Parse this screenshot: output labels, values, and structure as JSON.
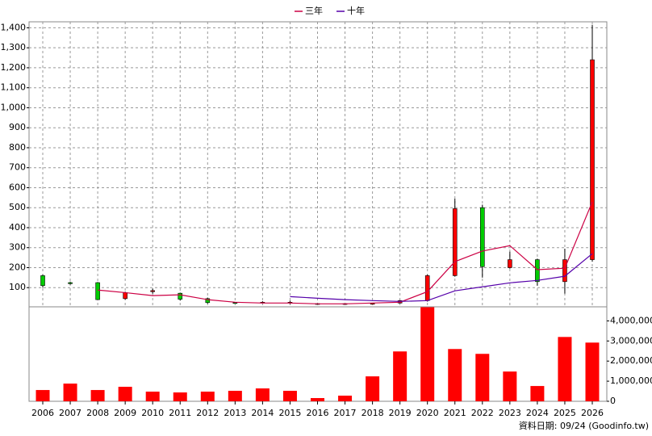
{
  "chart_data": [
    {
      "type": "candlestick",
      "open": [
        160,
        125,
        125,
        45,
        80,
        72,
        45,
        25,
        25,
        25,
        20,
        19,
        20,
        23,
        35,
        160,
        500,
        200,
        240,
        130,
        240
      ],
      "high": [
        165,
        130,
        128,
        80,
        95,
        75,
        50,
        27,
        32,
        35,
        22,
        21,
        22,
        38,
        165,
        545,
        515,
        280,
        245,
        295,
        1415
      ],
      "low": [
        100,
        115,
        38,
        40,
        70,
        35,
        20,
        20,
        22,
        18,
        17,
        17,
        18,
        20,
        30,
        155,
        150,
        195,
        110,
        70,
        230
      ],
      "close": [
        110,
        120,
        40,
        75,
        85,
        42,
        25,
        23,
        27,
        27,
        19,
        20,
        21,
        35,
        160,
        495,
        205,
        240,
        130,
        240,
        1240
      ],
      "up_color": "#ff0000",
      "down_color": "#00cc00",
      "series": [
        {
          "name": "三年",
          "color": "#cc0044",
          "values": [
            null,
            null,
            88,
            75,
            60,
            64,
            40,
            27,
            23,
            23,
            19,
            19,
            23,
            27,
            80,
            230,
            283,
            310,
            190,
            197,
            529
          ]
        },
        {
          "name": "十年",
          "color": "#5500aa",
          "values": [
            null,
            null,
            null,
            null,
            null,
            null,
            null,
            null,
            null,
            55,
            47,
            40,
            35,
            31,
            35,
            84,
            104,
            124,
            136,
            157,
            270
          ]
        }
      ],
      "ylim": [
        0,
        1430
      ],
      "yticks": [
        100,
        200,
        300,
        400,
        500,
        600,
        700,
        800,
        900,
        {
          "value": 1000,
          "label": "1,000"
        },
        {
          "value": 1100,
          "label": "1,100"
        },
        {
          "value": 1200,
          "label": "1,200"
        },
        {
          "value": 1300,
          "label": "1,300"
        },
        {
          "value": 1400,
          "label": "1,400"
        }
      ],
      "grid": true
    },
    {
      "type": "bar",
      "categories": [
        "2006",
        "2007",
        "2008",
        "2009",
        "2010",
        "2011",
        "2012",
        "2013",
        "2014",
        "2015",
        "2016",
        "2017",
        "2018",
        "2019",
        "2020",
        "2021",
        "2022",
        "2023",
        "2024",
        "2025",
        "2026"
      ],
      "values": [
        560000,
        880000,
        560000,
        720000,
        480000,
        440000,
        480000,
        520000,
        640000,
        520000,
        160000,
        280000,
        1240000,
        2480000,
        4680000,
        2600000,
        2360000,
        1480000,
        760000,
        3200000,
        2920000
      ],
      "color": "#ff0000",
      "ylim": [
        0,
        4700000
      ],
      "yticks": [
        0,
        {
          "value": 1000000,
          "label": "1,000,000"
        },
        {
          "value": 2000000,
          "label": "2,000,000"
        },
        {
          "value": 3000000,
          "label": "3,000,000"
        },
        {
          "value": 4000000,
          "label": "4,000,000"
        }
      ],
      "source": "資料日期: 09/24 (Goodinfo.tw)"
    }
  ]
}
